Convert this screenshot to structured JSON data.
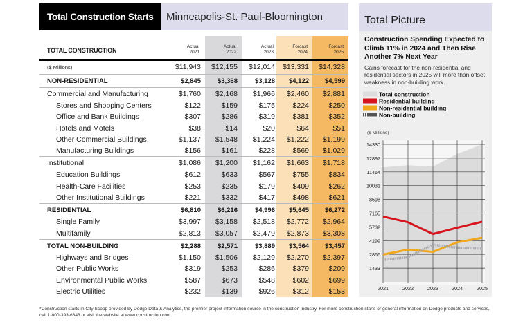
{
  "header": {
    "badge": "Total Construction Starts",
    "region": "Minneapolis-St. Paul-Bloomington"
  },
  "table": {
    "title": "TOTAL CONSTRUCTION",
    "columns": [
      {
        "l1": "Actual",
        "l2": "2021"
      },
      {
        "l1": "Actual",
        "l2": "2022"
      },
      {
        "l1": "Actual",
        "l2": "2023"
      },
      {
        "l1": "Forcast",
        "l2": "2024"
      },
      {
        "l1": "Forcast",
        "l2": "2025"
      }
    ],
    "column_colors": [
      "#ffffff",
      "#d9d9dc",
      "#ffffff",
      "#fbe0b8",
      "#f5b963"
    ],
    "rows": [
      {
        "label": "($ Millions)",
        "type": "note",
        "values": [
          "$11,943",
          "$12,155",
          "$12,014",
          "$13,331",
          "$14,328"
        ]
      },
      {
        "label": "NON-RESIDENTIAL",
        "type": "bold",
        "values": [
          "$2,845",
          "$3,368",
          "$3,128",
          "$4,122",
          "$4,599"
        ]
      },
      {
        "label": "Commercial and Manufacturing",
        "type": "main",
        "values": [
          "$1,760",
          "$2,168",
          "$1,966",
          "$2,460",
          "$2,881"
        ]
      },
      {
        "label": "Stores and Shopping Centers",
        "type": "sub",
        "values": [
          "$122",
          "$159",
          "$175",
          "$224",
          "$250"
        ]
      },
      {
        "label": "Office and Bank Buildings",
        "type": "sub",
        "values": [
          "$307",
          "$286",
          "$319",
          "$381",
          "$352"
        ]
      },
      {
        "label": "Hotels and Motels",
        "type": "sub",
        "values": [
          "$38",
          "$14",
          "$20",
          "$64",
          "$51"
        ]
      },
      {
        "label": "Other Commercial Buildings",
        "type": "sub",
        "values": [
          "$1,137",
          "$1,548",
          "$1,224",
          "$1,222",
          "$1,199"
        ]
      },
      {
        "label": "Manufacturing Buildings",
        "type": "sub",
        "values": [
          "$156",
          "$161",
          "$228",
          "$569",
          "$1,029"
        ]
      },
      {
        "label": "Institutional",
        "type": "main",
        "values": [
          "$1,086",
          "$1,200",
          "$1,162",
          "$1,663",
          "$1,718"
        ]
      },
      {
        "label": "Education Buildings",
        "type": "sub",
        "values": [
          "$612",
          "$633",
          "$567",
          "$755",
          "$834"
        ]
      },
      {
        "label": "Health-Care Facilities",
        "type": "sub",
        "values": [
          "$253",
          "$235",
          "$179",
          "$409",
          "$262"
        ]
      },
      {
        "label": "Other Institutional Buildings",
        "type": "sub",
        "values": [
          "$221",
          "$332",
          "$417",
          "$498",
          "$621"
        ]
      },
      {
        "label": "RESIDENTIAL",
        "type": "bold",
        "values": [
          "$6,810",
          "$6,216",
          "$4,996",
          "$5,645",
          "$6,272"
        ]
      },
      {
        "label": "Single Family",
        "type": "sub",
        "values": [
          "$3,997",
          "$3,158",
          "$2,518",
          "$2,772",
          "$2,964"
        ]
      },
      {
        "label": "Multifamily",
        "type": "sub",
        "values": [
          "$2,813",
          "$3,057",
          "$2,479",
          "$2,873",
          "$3,308"
        ]
      },
      {
        "label": "TOTAL NON-BUILDING",
        "type": "bold",
        "values": [
          "$2,288",
          "$2,571",
          "$3,889",
          "$3,564",
          "$3,457"
        ]
      },
      {
        "label": "Highways and Bridges",
        "type": "sub",
        "values": [
          "$1,150",
          "$1,506",
          "$2,129",
          "$2,270",
          "$2,397"
        ]
      },
      {
        "label": "Other Public Works",
        "type": "sub",
        "values": [
          "$319",
          "$253",
          "$286",
          "$379",
          "$209"
        ]
      },
      {
        "label": "Environmental Public Works",
        "type": "sub",
        "values": [
          "$587",
          "$673",
          "$548",
          "$602",
          "$699"
        ]
      },
      {
        "label": "Electric Utilities",
        "type": "sub",
        "values": [
          "$232",
          "$139",
          "$926",
          "$312",
          "$153"
        ]
      }
    ]
  },
  "panel": {
    "title": "Total Picture",
    "headline": "Construction Spending Expected to Climb 11% in 2024 and Then Rise Another 7% Next Year",
    "description": "Gains forecast for the non-residential and residential sectors in 2025 will more than offset weakness in non-building work."
  },
  "chart_data": {
    "type": "line",
    "ylabel": "($ Millions)",
    "x": [
      "2021",
      "2022",
      "2023",
      "2024",
      "2025"
    ],
    "ylim": [
      0,
      14330
    ],
    "yticks": [
      1433,
      2866,
      4299,
      5732,
      7165,
      8598,
      10031,
      11464,
      12897,
      14330
    ],
    "grid": true,
    "legend_placement": "top",
    "series": [
      {
        "name": "Total construction",
        "style": "area",
        "color": "#dcdcdc",
        "values": [
          11943,
          12155,
          12014,
          13331,
          14328
        ]
      },
      {
        "name": "Residential building",
        "style": "line",
        "color": "#d7141e",
        "values": [
          6810,
          6216,
          4996,
          5645,
          6272
        ]
      },
      {
        "name": "Non-residential building",
        "style": "line",
        "color": "#f2a81d",
        "values": [
          2845,
          3368,
          3128,
          4122,
          4599
        ]
      },
      {
        "name": "Non-building",
        "style": "dashed",
        "color": "#a0a0a8",
        "values": [
          2288,
          2571,
          3889,
          3564,
          3457
        ]
      }
    ]
  },
  "footer": "*Construction starts in City Scoop provided by Dodge Data & Analytics, the premier project information source in the construction industry. For more construction starts or general information on Dodge products and services, call 1-800-393-6343 or visit the website at www.construction.com."
}
